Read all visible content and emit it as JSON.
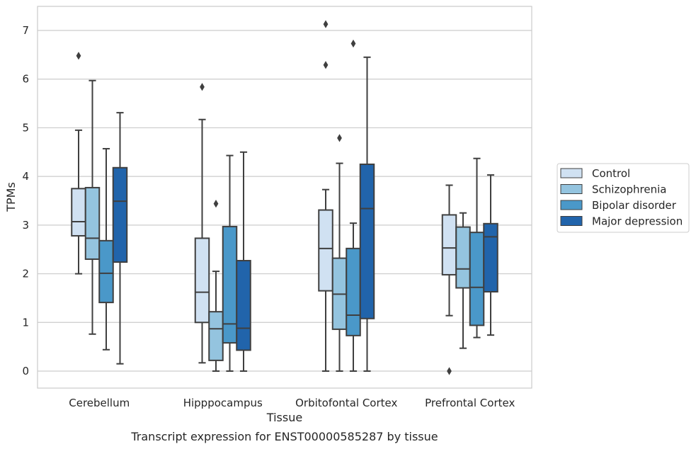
{
  "chart_data": {
    "type": "box",
    "xlabel": "Tissue",
    "ylabel": "TPMs",
    "caption": "Transcript expression for ENST00000585287 by tissue",
    "ylim": [
      -0.35,
      7.5
    ],
    "yticks": [
      0,
      1,
      2,
      3,
      4,
      5,
      6,
      7
    ],
    "grid": "horizontal",
    "legend_position": "right",
    "categories": [
      "Cerebellum",
      "Hipppocampus",
      "Orbitofontal Cortex",
      "Prefrontal Cortex"
    ],
    "series": [
      {
        "name": "Control",
        "color": "#d0e1f2",
        "boxes": [
          {
            "whislo": 2.0,
            "q1": 2.78,
            "med": 3.07,
            "q3": 3.75,
            "whishi": 4.95,
            "fliers": [
              6.48
            ]
          },
          {
            "whislo": 0.17,
            "q1": 1.0,
            "med": 1.62,
            "q3": 2.73,
            "whishi": 5.17,
            "fliers": [
              5.84
            ]
          },
          {
            "whislo": 0.0,
            "q1": 1.65,
            "med": 2.52,
            "q3": 3.31,
            "whishi": 3.73,
            "fliers": [
              6.29,
              7.13
            ]
          },
          {
            "whislo": 1.14,
            "q1": 1.98,
            "med": 2.53,
            "q3": 3.21,
            "whishi": 3.82,
            "fliers": [
              0.0
            ]
          }
        ]
      },
      {
        "name": "Schizophrenia",
        "color": "#94c4df",
        "boxes": [
          {
            "whislo": 0.76,
            "q1": 2.3,
            "med": 2.73,
            "q3": 3.77,
            "whishi": 5.97,
            "fliers": []
          },
          {
            "whislo": 0.0,
            "q1": 0.22,
            "med": 0.87,
            "q3": 1.22,
            "whishi": 2.05,
            "fliers": [
              3.44
            ]
          },
          {
            "whislo": 0.0,
            "q1": 0.86,
            "med": 1.58,
            "q3": 2.32,
            "whishi": 4.27,
            "fliers": [
              4.79
            ]
          },
          {
            "whislo": 0.47,
            "q1": 1.71,
            "med": 2.1,
            "q3": 2.96,
            "whishi": 3.25,
            "fliers": []
          }
        ]
      },
      {
        "name": "Bipolar disorder",
        "color": "#4a98c9",
        "boxes": [
          {
            "whislo": 0.44,
            "q1": 1.41,
            "med": 2.01,
            "q3": 2.68,
            "whishi": 4.57,
            "fliers": []
          },
          {
            "whislo": 0.0,
            "q1": 0.58,
            "med": 0.97,
            "q3": 2.97,
            "whishi": 4.43,
            "fliers": []
          },
          {
            "whislo": 0.0,
            "q1": 0.73,
            "med": 1.15,
            "q3": 2.52,
            "whishi": 3.04,
            "fliers": [
              6.73
            ]
          },
          {
            "whislo": 0.69,
            "q1": 0.94,
            "med": 1.72,
            "q3": 2.85,
            "whishi": 4.37,
            "fliers": []
          }
        ]
      },
      {
        "name": "Major depression",
        "color": "#2164ab",
        "boxes": [
          {
            "whislo": 0.15,
            "q1": 2.24,
            "med": 3.49,
            "q3": 4.18,
            "whishi": 5.31,
            "fliers": []
          },
          {
            "whislo": 0.0,
            "q1": 0.43,
            "med": 0.88,
            "q3": 2.27,
            "whishi": 4.5,
            "fliers": []
          },
          {
            "whislo": 0.0,
            "q1": 1.08,
            "med": 3.34,
            "q3": 4.25,
            "whishi": 6.45,
            "fliers": []
          },
          {
            "whislo": 0.74,
            "q1": 1.63,
            "med": 2.76,
            "q3": 3.03,
            "whishi": 4.03,
            "fliers": []
          }
        ]
      }
    ]
  }
}
